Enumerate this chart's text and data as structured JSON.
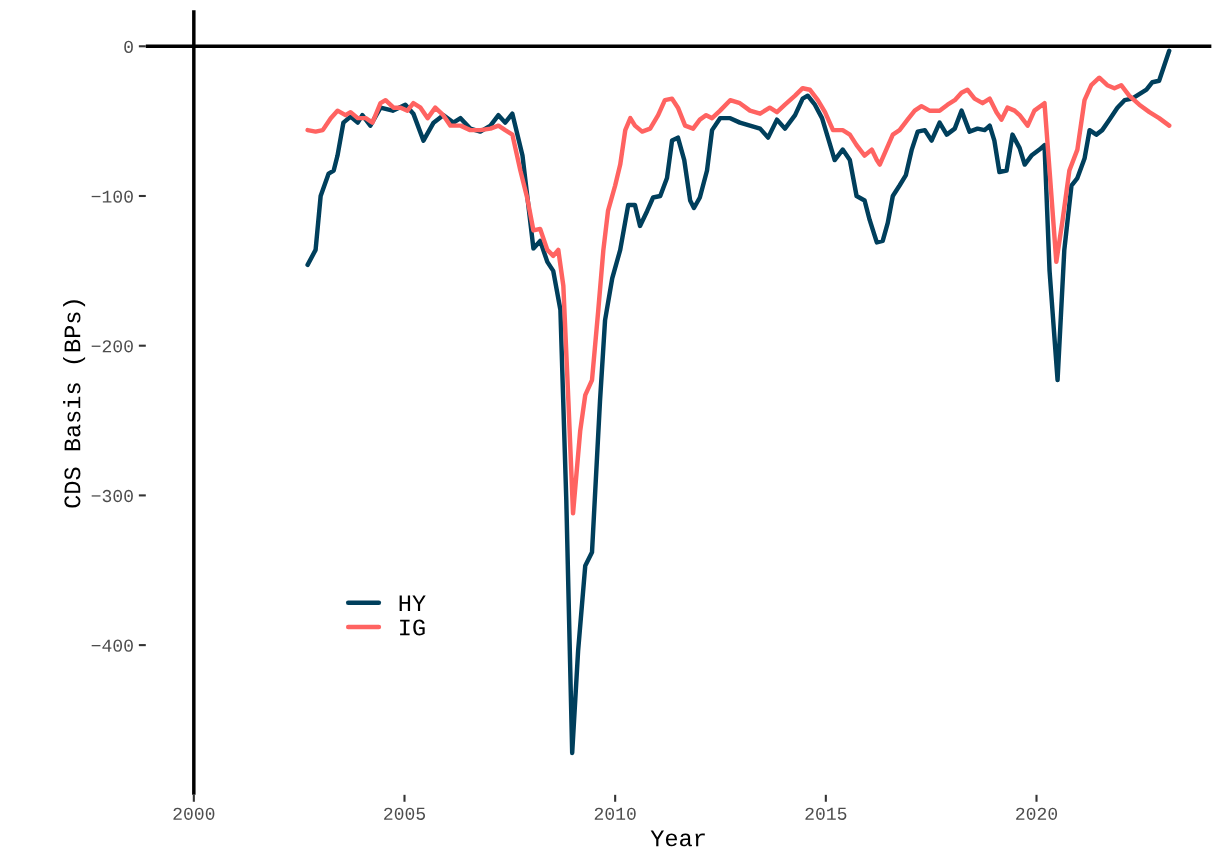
{
  "chart_data": {
    "type": "line",
    "xlabel": "Year",
    "ylabel": "CDS Basis (BPs)",
    "xlim": [
      1998.86,
      2024.15
    ],
    "ylim": [
      -500,
      24
    ],
    "xticks": [
      2000,
      2005,
      2010,
      2015,
      2020
    ],
    "yticks": [
      -400,
      -300,
      -200,
      -100,
      0
    ],
    "grid": false,
    "legend": "bottom left",
    "marker": "none",
    "line_style": "solid",
    "ref_lines": [
      {
        "axis": "y",
        "value": 0,
        "color": "#000000"
      },
      {
        "axis": "x",
        "value": 2000,
        "color": "#000000"
      }
    ],
    "series": [
      {
        "name": "HY",
        "color": "#003f5c",
        "x": [
          2002.7,
          2002.89,
          2003.01,
          2003.2,
          2003.32,
          2003.41,
          2003.55,
          2003.72,
          2003.89,
          2004.0,
          2004.19,
          2004.43,
          2004.72,
          2005.02,
          2005.21,
          2005.45,
          2005.69,
          2005.92,
          2006.16,
          2006.33,
          2006.56,
          2006.8,
          2007.04,
          2007.23,
          2007.39,
          2007.56,
          2007.8,
          2008.06,
          2008.22,
          2008.39,
          2008.53,
          2008.7,
          2008.84,
          2008.98,
          2009.12,
          2009.29,
          2009.45,
          2009.64,
          2009.76,
          2009.93,
          2010.12,
          2010.31,
          2010.47,
          2010.59,
          2010.76,
          2010.9,
          2011.07,
          2011.23,
          2011.35,
          2011.49,
          2011.64,
          2011.78,
          2011.87,
          2012.01,
          2012.18,
          2012.3,
          2012.49,
          2012.73,
          2012.96,
          2013.2,
          2013.44,
          2013.63,
          2013.84,
          2014.03,
          2014.27,
          2014.45,
          2014.57,
          2014.74,
          2014.91,
          2015.05,
          2015.21,
          2015.4,
          2015.57,
          2015.73,
          2015.92,
          2016.04,
          2016.21,
          2016.35,
          2016.47,
          2016.59,
          2016.75,
          2016.9,
          2017.04,
          2017.18,
          2017.35,
          2017.51,
          2017.7,
          2017.87,
          2018.06,
          2018.22,
          2018.41,
          2018.6,
          2018.77,
          2018.89,
          2019.0,
          2019.12,
          2019.29,
          2019.43,
          2019.6,
          2019.72,
          2019.88,
          2020.07,
          2020.19,
          2020.31,
          2020.5,
          2020.66,
          2020.83,
          2020.97,
          2021.14,
          2021.26,
          2021.42,
          2021.56,
          2021.73,
          2021.92,
          2022.09,
          2022.27,
          2022.44,
          2022.61,
          2022.75,
          2022.91,
          2023.03,
          2023.15
        ],
        "values": [
          -146,
          -136,
          -100,
          -85,
          -83,
          -73,
          -51,
          -47,
          -51,
          -46,
          -53,
          -41,
          -43,
          -39,
          -45,
          -63,
          -51,
          -46,
          -51,
          -48,
          -55,
          -57,
          -53,
          -46,
          -51,
          -45,
          -73,
          -135,
          -130,
          -144,
          -150,
          -176,
          -303,
          -472,
          -404,
          -347,
          -338,
          -237,
          -183,
          -155,
          -136,
          -106,
          -106,
          -120,
          -110,
          -101,
          -100,
          -88,
          -63,
          -61,
          -76,
          -103,
          -108,
          -101,
          -83,
          -56,
          -48,
          -48,
          -51,
          -53,
          -55,
          -61,
          -49,
          -55,
          -46,
          -35,
          -33,
          -39,
          -48,
          -61,
          -76,
          -69,
          -76,
          -100,
          -103,
          -116,
          -131,
          -130,
          -118,
          -100,
          -93,
          -86,
          -69,
          -57,
          -56,
          -63,
          -51,
          -59,
          -55,
          -43,
          -57,
          -55,
          -56,
          -53,
          -63,
          -84,
          -83,
          -59,
          -68,
          -79,
          -73,
          -69,
          -66,
          -150,
          -223,
          -136,
          -93,
          -88,
          -75,
          -56,
          -59,
          -56,
          -49,
          -41,
          -36,
          -35,
          -32,
          -29,
          -24,
          -23,
          -13,
          -3
        ]
      },
      {
        "name": "IG",
        "color": "#ff6361",
        "x": [
          2002.7,
          2002.89,
          2003.06,
          2003.25,
          2003.41,
          2003.6,
          2003.72,
          2003.89,
          2004.08,
          2004.24,
          2004.43,
          2004.55,
          2004.74,
          2004.91,
          2005.07,
          2005.21,
          2005.38,
          2005.55,
          2005.73,
          2005.92,
          2006.09,
          2006.33,
          2006.56,
          2006.8,
          2007.04,
          2007.23,
          2007.39,
          2007.56,
          2007.75,
          2007.91,
          2008.06,
          2008.22,
          2008.39,
          2008.53,
          2008.65,
          2008.77,
          2008.89,
          2009.0,
          2009.17,
          2009.29,
          2009.45,
          2009.6,
          2009.72,
          2009.83,
          2010.0,
          2010.12,
          2010.24,
          2010.36,
          2010.47,
          2010.64,
          2010.83,
          2011.02,
          2011.18,
          2011.35,
          2011.49,
          2011.66,
          2011.85,
          2012.01,
          2012.16,
          2012.3,
          2012.49,
          2012.73,
          2012.96,
          2013.2,
          2013.44,
          2013.67,
          2013.84,
          2014.03,
          2014.27,
          2014.45,
          2014.62,
          2014.81,
          2014.98,
          2015.17,
          2015.4,
          2015.57,
          2015.73,
          2015.92,
          2016.09,
          2016.21,
          2016.28,
          2016.45,
          2016.59,
          2016.75,
          2016.94,
          2017.11,
          2017.27,
          2017.46,
          2017.7,
          2017.89,
          2018.06,
          2018.22,
          2018.36,
          2018.53,
          2018.72,
          2018.89,
          2019.05,
          2019.17,
          2019.31,
          2019.48,
          2019.6,
          2019.79,
          2019.95,
          2020.19,
          2020.31,
          2020.47,
          2020.62,
          2020.78,
          2020.97,
          2021.14,
          2021.3,
          2021.49,
          2021.68,
          2021.85,
          2022.01,
          2022.2,
          2022.44,
          2022.68,
          2022.91,
          2023.15
        ],
        "values": [
          -56,
          -57,
          -56,
          -48,
          -43,
          -46,
          -44,
          -48,
          -48,
          -51,
          -38,
          -36,
          -41,
          -41,
          -43,
          -38,
          -41,
          -48,
          -41,
          -46,
          -53,
          -53,
          -56,
          -56,
          -55,
          -53,
          -56,
          -59,
          -83,
          -101,
          -123,
          -122,
          -136,
          -140,
          -136,
          -160,
          -237,
          -312,
          -257,
          -233,
          -223,
          -176,
          -136,
          -110,
          -93,
          -79,
          -56,
          -48,
          -53,
          -57,
          -55,
          -46,
          -36,
          -35,
          -41,
          -53,
          -55,
          -49,
          -46,
          -48,
          -43,
          -36,
          -38,
          -43,
          -45,
          -41,
          -44,
          -39,
          -33,
          -28,
          -29,
          -36,
          -44,
          -56,
          -56,
          -59,
          -66,
          -73,
          -69,
          -76,
          -79,
          -68,
          -59,
          -56,
          -49,
          -43,
          -40,
          -43,
          -43,
          -39,
          -36,
          -31,
          -29,
          -35,
          -38,
          -35,
          -44,
          -49,
          -41,
          -43,
          -46,
          -53,
          -43,
          -38,
          -83,
          -144,
          -116,
          -83,
          -69,
          -36,
          -26,
          -21,
          -26,
          -28,
          -26,
          -33,
          -39,
          -44,
          -48,
          -53
        ]
      }
    ]
  }
}
